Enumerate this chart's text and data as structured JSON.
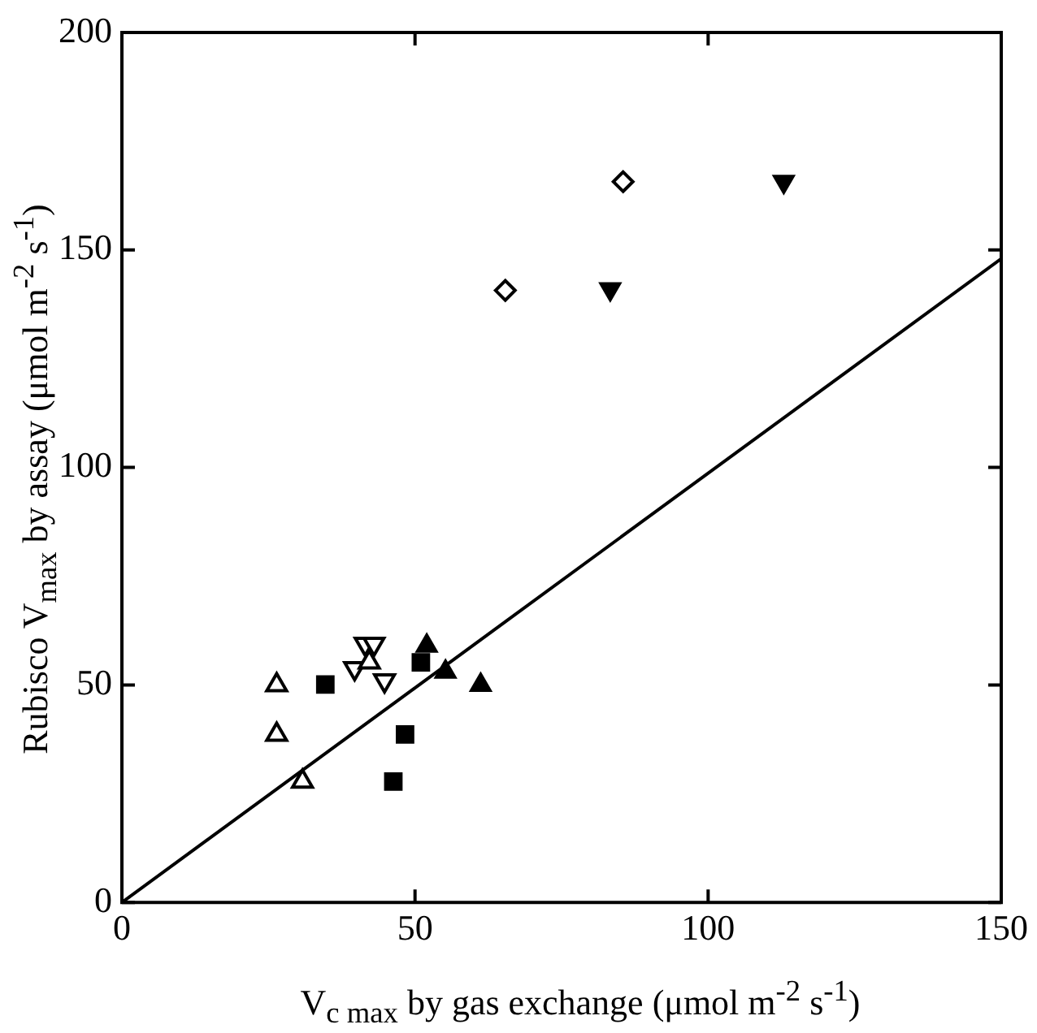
{
  "chart_data": {
    "type": "scatter",
    "xlabel": "V$_{c max}$ by gas exchange (μmol m$^{-2}$ s$^{-1}$)",
    "ylabel": "Rubisco V$_{max}$ by assay (μmol m$^{-2}$ s$^{-1}$)",
    "xlim": [
      0,
      150
    ],
    "xticks": [
      0,
      50,
      100,
      150
    ],
    "ylim": [
      0,
      200
    ],
    "yticks": [
      0,
      50,
      100,
      150,
      200
    ],
    "grid": false,
    "legend": false,
    "series": [
      {
        "color": "#000000",
        "marker": "triangle-open",
        "x": [
          26.4,
          26.4,
          30.8,
          42.2
        ],
        "values": [
          50,
          38.6,
          27.8,
          55.2
        ]
      },
      {
        "color": "#000000",
        "marker": "square",
        "x": [
          34.7,
          48.3,
          46.3,
          51
        ],
        "values": [
          50.1,
          38.6,
          27.8,
          55.2
        ]
      },
      {
        "color": "#000000",
        "marker": "triangle",
        "x": [
          52,
          55.2,
          61.2
        ],
        "values": [
          59,
          53,
          50
        ]
      },
      {
        "color": "#000000",
        "marker": "triangle-down-open",
        "x": [
          39.7,
          41.5,
          43,
          44.8
        ],
        "values": [
          53.8,
          59.4,
          59.4,
          51
        ]
      },
      {
        "color": "#000000",
        "marker": "diamond-open",
        "x": [
          65.4,
          85.5
        ],
        "values": [
          140.7,
          165.7
        ]
      },
      {
        "color": "#000000",
        "marker": "triangle-down",
        "x": [
          83.3,
          112.9
        ],
        "values": [
          141,
          165.7
        ]
      },
      {
        "type": "line",
        "color": "#000000",
        "marker": "none",
        "line_style": "solid",
        "x": [
          0,
          150
        ],
        "values": [
          0,
          148
        ]
      }
    ]
  }
}
